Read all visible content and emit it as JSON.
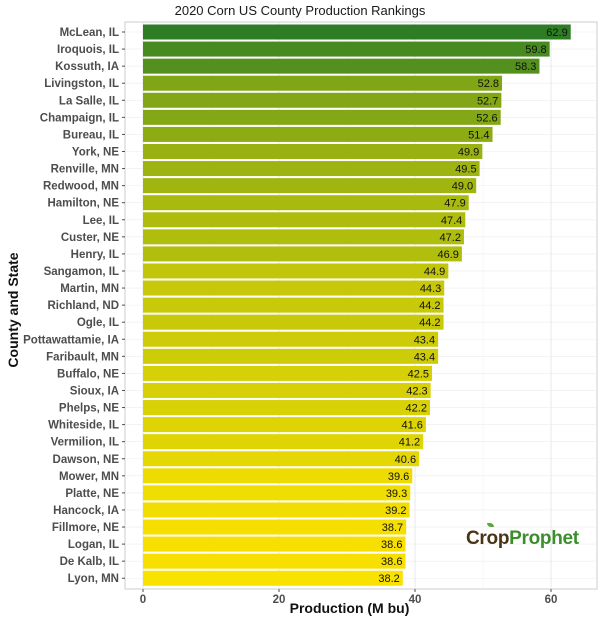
{
  "chart_data": {
    "type": "bar",
    "orientation": "horizontal",
    "title": "2020 Corn US County Production Rankings",
    "xlabel": "Production (M bu)",
    "ylabel": "County and State",
    "xlim": [
      0,
      64
    ],
    "x_ticks": [
      0,
      20,
      40,
      60
    ],
    "grid": true,
    "legend": "none",
    "colors": {
      "low": "#f9e100",
      "high": "#2e7d24",
      "grid": "#e8e8e8",
      "panel": "#ffffff"
    },
    "categories": [
      "McLean, IL",
      "Iroquois, IL",
      "Kossuth, IA",
      "Livingston, IL",
      "La Salle, IL",
      "Champaign, IL",
      "Bureau, IL",
      "York, NE",
      "Renville, MN",
      "Redwood, MN",
      "Hamilton, NE",
      "Lee, IL",
      "Custer, NE",
      "Henry, IL",
      "Sangamon, IL",
      "Martin, MN",
      "Richland, ND",
      "Ogle, IL",
      "Pottawattamie, IA",
      "Faribault, MN",
      "Buffalo, NE",
      "Sioux, IA",
      "Phelps, NE",
      "Whiteside, IL",
      "Vermilion, IL",
      "Dawson, NE",
      "Mower, MN",
      "Platte, NE",
      "Hancock, IA",
      "Fillmore, NE",
      "Logan, IL",
      "De Kalb, IL",
      "Lyon, MN"
    ],
    "values": [
      62.9,
      59.8,
      58.3,
      52.8,
      52.7,
      52.6,
      51.4,
      49.9,
      49.5,
      49.0,
      47.9,
      47.4,
      47.2,
      46.9,
      44.9,
      44.3,
      44.2,
      44.2,
      43.4,
      43.4,
      42.5,
      42.3,
      42.2,
      41.6,
      41.2,
      40.6,
      39.6,
      39.3,
      39.2,
      38.7,
      38.6,
      38.6,
      38.2
    ],
    "value_labels": [
      "62.9",
      "59.8",
      "58.3",
      "52.8",
      "52.7",
      "52.6",
      "51.4",
      "49.9",
      "49.5",
      "49.0",
      "47.9",
      "47.4",
      "47.2",
      "46.9",
      "44.9",
      "44.3",
      "44.2",
      "44.2",
      "43.4",
      "43.4",
      "42.5",
      "42.3",
      "42.2",
      "41.6",
      "41.2",
      "40.6",
      "39.6",
      "39.3",
      "39.2",
      "38.7",
      "38.6",
      "38.6",
      "38.2"
    ]
  },
  "logo": {
    "part1": "Crop",
    "part2": "Prophet"
  }
}
